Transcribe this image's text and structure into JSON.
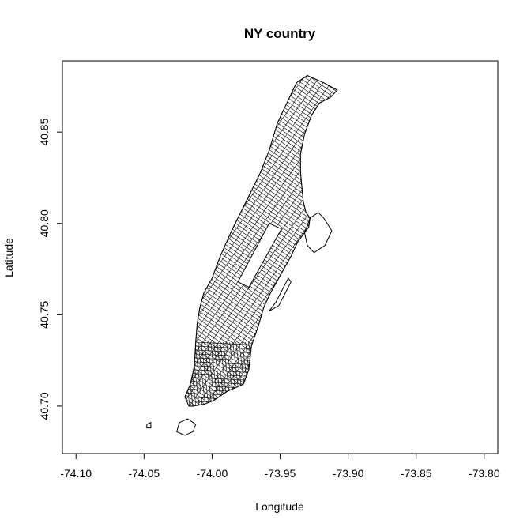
{
  "chart_data": {
    "type": "map",
    "title": "NY country",
    "xlabel": "Longitude",
    "ylabel": "Latitude",
    "xlim": [
      -74.11,
      -73.79
    ],
    "ylim": [
      40.674,
      40.889
    ],
    "x_ticks": [
      -74.1,
      -74.05,
      -74.0,
      -73.95,
      -73.9,
      -73.85,
      -73.8
    ],
    "x_tick_labels": [
      "-74.10",
      "-74.05",
      "-74.00",
      "-73.95",
      "-73.90",
      "-73.85",
      "-73.80"
    ],
    "y_ticks": [
      40.7,
      40.75,
      40.8,
      40.85
    ],
    "y_tick_labels": [
      "40.70",
      "40.75",
      "40.80",
      "40.85"
    ],
    "boundary_color": "#000000",
    "background_color": "#ffffff",
    "outline": [
      [
        -74.017,
        40.7
      ],
      [
        -74.02,
        40.705
      ],
      [
        -74.016,
        40.712
      ],
      [
        -74.013,
        40.722
      ],
      [
        -74.012,
        40.735
      ],
      [
        -74.011,
        40.745
      ],
      [
        -74.009,
        40.754
      ],
      [
        -74.006,
        40.762
      ],
      [
        -74.0,
        40.77
      ],
      [
        -73.994,
        40.782
      ],
      [
        -73.985,
        40.797
      ],
      [
        -73.975,
        40.812
      ],
      [
        -73.965,
        40.827
      ],
      [
        -73.958,
        40.84
      ],
      [
        -73.952,
        40.855
      ],
      [
        -73.945,
        40.866
      ],
      [
        -73.938,
        40.877
      ],
      [
        -73.93,
        40.881
      ],
      [
        -73.918,
        40.877
      ],
      [
        -73.908,
        40.873
      ],
      [
        -73.913,
        40.869
      ],
      [
        -73.921,
        40.866
      ],
      [
        -73.927,
        40.859
      ],
      [
        -73.932,
        40.849
      ],
      [
        -73.935,
        40.838
      ],
      [
        -73.935,
        40.828
      ],
      [
        -73.933,
        40.812
      ],
      [
        -73.931,
        40.806
      ],
      [
        -73.928,
        40.803
      ],
      [
        -73.929,
        40.798
      ],
      [
        -73.937,
        40.79
      ],
      [
        -73.942,
        40.782
      ],
      [
        -73.948,
        40.774
      ],
      [
        -73.957,
        40.762
      ],
      [
        -73.962,
        40.754
      ],
      [
        -73.966,
        40.744
      ],
      [
        -73.971,
        40.733
      ],
      [
        -73.973,
        40.72
      ],
      [
        -73.977,
        40.712
      ],
      [
        -73.989,
        40.708
      ],
      [
        -73.999,
        40.703
      ],
      [
        -74.006,
        40.701
      ],
      [
        -74.014,
        40.7
      ],
      [
        -74.017,
        40.7
      ]
    ],
    "central_park": [
      [
        -73.981,
        40.768
      ],
      [
        -73.973,
        40.765
      ],
      [
        -73.949,
        40.797
      ],
      [
        -73.958,
        40.8
      ],
      [
        -73.981,
        40.768
      ]
    ],
    "randalls_island": [
      [
        -73.928,
        40.803
      ],
      [
        -73.922,
        40.806
      ],
      [
        -73.918,
        40.803
      ],
      [
        -73.912,
        40.796
      ],
      [
        -73.917,
        40.788
      ],
      [
        -73.925,
        40.784
      ],
      [
        -73.93,
        40.788
      ],
      [
        -73.932,
        40.795
      ],
      [
        -73.928,
        40.803
      ]
    ],
    "roosevelt_island": [
      [
        -73.958,
        40.752
      ],
      [
        -73.953,
        40.757
      ],
      [
        -73.944,
        40.77
      ],
      [
        -73.942,
        40.768
      ],
      [
        -73.951,
        40.755
      ],
      [
        -73.958,
        40.752
      ]
    ],
    "governors_island": [
      [
        -74.024,
        40.691
      ],
      [
        -74.018,
        40.693
      ],
      [
        -74.012,
        40.69
      ],
      [
        -74.014,
        40.686
      ],
      [
        -74.02,
        40.684
      ],
      [
        -74.026,
        40.686
      ],
      [
        -74.024,
        40.691
      ]
    ],
    "liberty_island": [
      [
        -74.048,
        40.69
      ],
      [
        -74.045,
        40.691
      ],
      [
        -74.045,
        40.688
      ],
      [
        -74.048,
        40.688
      ],
      [
        -74.048,
        40.69
      ]
    ]
  }
}
